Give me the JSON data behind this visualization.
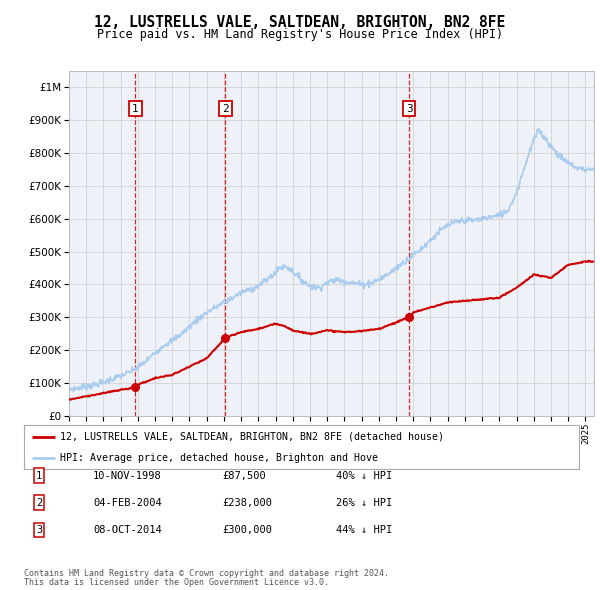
{
  "title": "12, LUSTRELLS VALE, SALTDEAN, BRIGHTON, BN2 8FE",
  "subtitle": "Price paid vs. HM Land Registry's House Price Index (HPI)",
  "legend_entry1": "12, LUSTRELLS VALE, SALTDEAN, BRIGHTON, BN2 8FE (detached house)",
  "legend_entry2": "HPI: Average price, detached house, Brighton and Hove",
  "footnote1": "Contains HM Land Registry data © Crown copyright and database right 2024.",
  "footnote2": "This data is licensed under the Open Government Licence v3.0.",
  "sales": [
    {
      "num": 1,
      "date": "10-NOV-1998",
      "price": 87500,
      "x": 1998.86,
      "label": "40% ↓ HPI"
    },
    {
      "num": 2,
      "date": "04-FEB-2004",
      "price": 238000,
      "x": 2004.09,
      "label": "26% ↓ HPI"
    },
    {
      "num": 3,
      "date": "08-OCT-2014",
      "price": 300000,
      "x": 2014.77,
      "label": "44% ↓ HPI"
    }
  ],
  "hpi_color": "#aaccee",
  "price_color": "#cc0000",
  "sale_marker_color": "#cc0000",
  "vline_color": "#cc0000",
  "background_color": "#ffffff",
  "plot_bg_color": "#eef2f8",
  "grid_color": "#cccccc",
  "ylim": [
    0,
    1050000
  ],
  "xlim_start": 1995,
  "xlim_end": 2025.5,
  "hpi_years": [
    1995,
    1995.5,
    1996,
    1996.5,
    1997,
    1997.5,
    1998,
    1998.5,
    1999,
    1999.5,
    2000,
    2000.5,
    2001,
    2001.5,
    2002,
    2002.5,
    2003,
    2003.5,
    2004,
    2004.5,
    2005,
    2005.5,
    2006,
    2006.5,
    2007,
    2007.2,
    2007.5,
    2007.8,
    2008,
    2008.5,
    2009,
    2009.5,
    2010,
    2010.5,
    2011,
    2011.5,
    2012,
    2012.5,
    2013,
    2013.5,
    2014,
    2014.5,
    2015,
    2015.5,
    2016,
    2016.5,
    2017,
    2017.5,
    2018,
    2018.5,
    2019,
    2019.5,
    2020,
    2020.5,
    2021,
    2021.3,
    2021.6,
    2022,
    2022.3,
    2022.6,
    2023,
    2023.5,
    2024,
    2024.5,
    2025
  ],
  "hpi_vals": [
    82000,
    85000,
    90000,
    95000,
    102000,
    112000,
    122000,
    132000,
    148000,
    168000,
    192000,
    215000,
    230000,
    248000,
    272000,
    295000,
    315000,
    330000,
    345000,
    360000,
    375000,
    385000,
    395000,
    415000,
    435000,
    450000,
    455000,
    450000,
    440000,
    415000,
    395000,
    390000,
    405000,
    415000,
    410000,
    405000,
    400000,
    405000,
    415000,
    430000,
    450000,
    470000,
    490000,
    510000,
    535000,
    560000,
    580000,
    590000,
    595000,
    595000,
    600000,
    605000,
    610000,
    625000,
    680000,
    730000,
    780000,
    840000,
    870000,
    850000,
    820000,
    790000,
    770000,
    755000,
    750000
  ],
  "red_years": [
    1995,
    1998.86,
    1999,
    2000,
    2001,
    2002,
    2003,
    2004.09,
    2004.5,
    2005,
    2006,
    2007,
    2007.5,
    2008,
    2009,
    2010,
    2011,
    2012,
    2013,
    2014.77,
    2015,
    2016,
    2017,
    2018,
    2019,
    2020,
    2021,
    2022,
    2023,
    2024,
    2025
  ],
  "red_vals": [
    50000,
    87500,
    95000,
    115000,
    125000,
    150000,
    175000,
    238000,
    245000,
    255000,
    265000,
    280000,
    275000,
    260000,
    250000,
    260000,
    255000,
    258000,
    265000,
    300000,
    315000,
    330000,
    345000,
    350000,
    355000,
    360000,
    390000,
    430000,
    420000,
    460000,
    470000
  ]
}
